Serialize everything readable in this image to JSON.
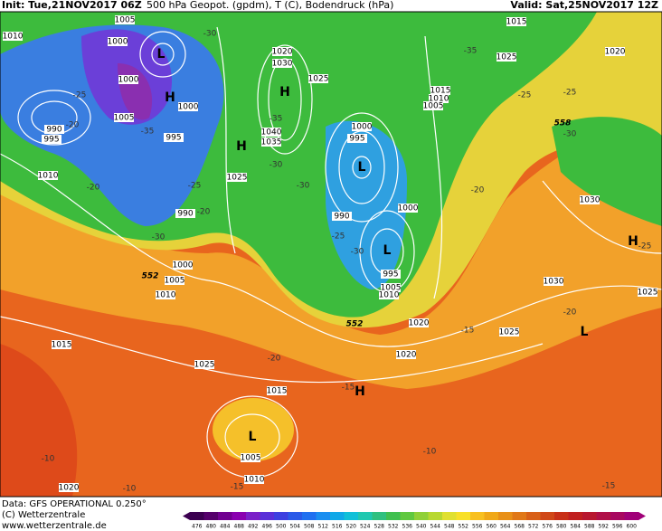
{
  "header": {
    "init": "Init: Tue,21NOV2017 06Z",
    "title": "500 hPa Geopot. (gpdm), T (C), Bodendruck (hPa)",
    "valid": "Valid: Sat,25NOV2017 12Z"
  },
  "pressure_labels": [
    "1005",
    "1015",
    "1010",
    "1000",
    "1020",
    "1030",
    "1025",
    "1020",
    "1025",
    "1015",
    "1010",
    "1000",
    "1005",
    "1000",
    "1005",
    "995",
    "990",
    "995",
    "1040",
    "1035",
    "1000",
    "995",
    "1010",
    "1025",
    "990",
    "1000",
    "990",
    "1030",
    "1000",
    "1005",
    "1010",
    "995",
    "1005",
    "1010",
    "1030",
    "1025",
    "1020",
    "1025",
    "1015",
    "1025",
    "1020",
    "1015",
    "1005",
    "1010",
    "1020"
  ],
  "pressure_centers": [
    "L",
    "H",
    "H",
    "H",
    "L",
    "L",
    "H",
    "L",
    "H",
    "L"
  ],
  "temperature_labels": [
    "-30",
    "-25",
    "-20",
    "-35",
    "-25",
    "-20",
    "-30",
    "-20",
    "-35",
    "-30",
    "-30",
    "-25",
    "-30",
    "-20",
    "-25",
    "-25",
    "-30",
    "-25",
    "-20",
    "-15",
    "-20",
    "-15",
    "-10",
    "-10",
    "-10",
    "-15",
    "-15",
    "-35"
  ],
  "height_labels": [
    "552",
    "552",
    "558"
  ],
  "footer": {
    "data": "Data: GFS OPERATIONAL 0.250°",
    "copyright": "(C) Wetterzentrale",
    "url": "www.wetterzentrale.de"
  },
  "colorbar": {
    "ticks": [
      476,
      480,
      484,
      488,
      492,
      496,
      500,
      504,
      508,
      512,
      516,
      520,
      524,
      528,
      532,
      536,
      540,
      544,
      548,
      552,
      556,
      560,
      564,
      568,
      572,
      576,
      580,
      584,
      588,
      592,
      596,
      600
    ]
  }
}
